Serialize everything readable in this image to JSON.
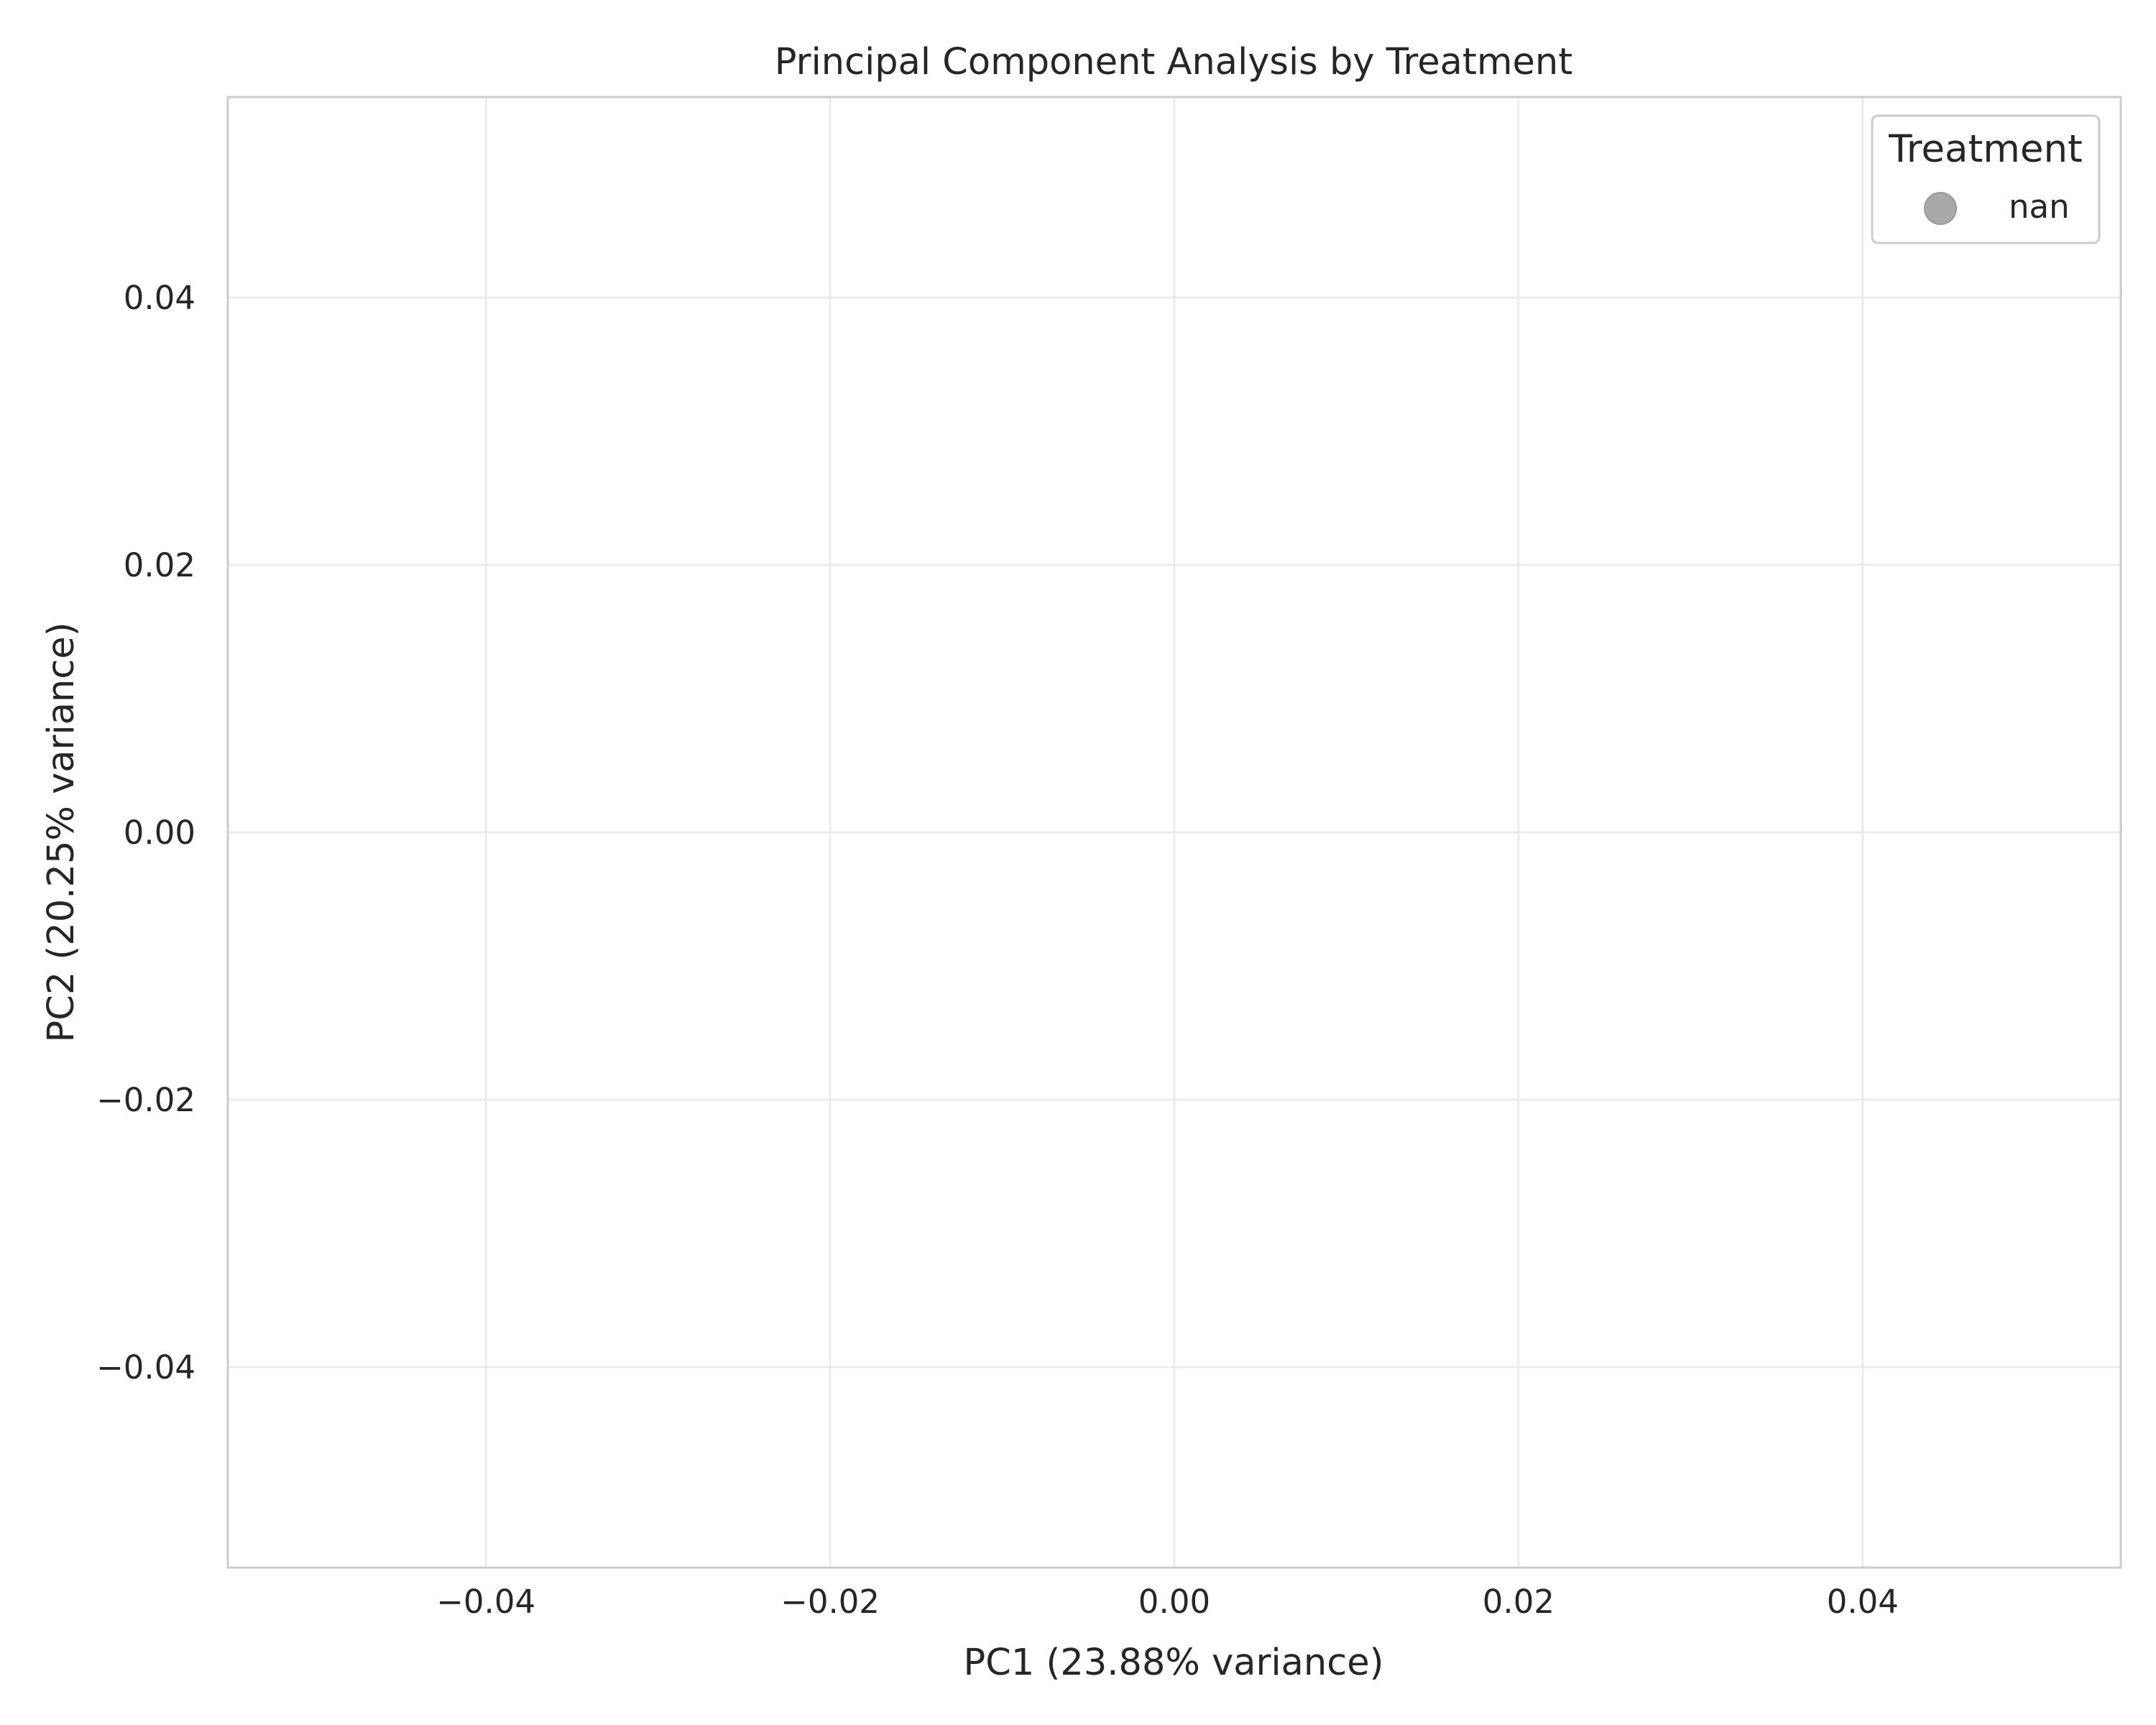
{
  "chart_data": {
    "type": "scatter",
    "title": "Principal Component Analysis by Treatment",
    "xlabel": "PC1 (23.88% variance)",
    "ylabel": "PC2 (20.25% variance)",
    "xlim": [
      -0.055,
      0.055
    ],
    "ylim": [
      -0.055,
      0.055
    ],
    "xticks": [
      -0.04,
      -0.02,
      0.0,
      0.02,
      0.04
    ],
    "yticks": [
      -0.04,
      -0.02,
      0.0,
      0.02,
      0.04
    ],
    "xtick_labels": [
      "−0.04",
      "−0.02",
      "0.00",
      "0.02",
      "0.04"
    ],
    "ytick_labels": [
      "−0.04",
      "−0.02",
      "0.00",
      "0.02",
      "0.04"
    ],
    "grid": true,
    "legend": {
      "title": "Treatment",
      "placement": "top-right",
      "entries": [
        {
          "label": "nan",
          "color": "#a9a9a9"
        }
      ]
    },
    "series": [
      {
        "name": "nan",
        "color": "#a9a9a9",
        "x": [],
        "y": []
      }
    ]
  },
  "colors": {
    "frame": "#cccccc",
    "grid": "#ebebeb",
    "text": "#262626",
    "background": "#ffffff"
  }
}
